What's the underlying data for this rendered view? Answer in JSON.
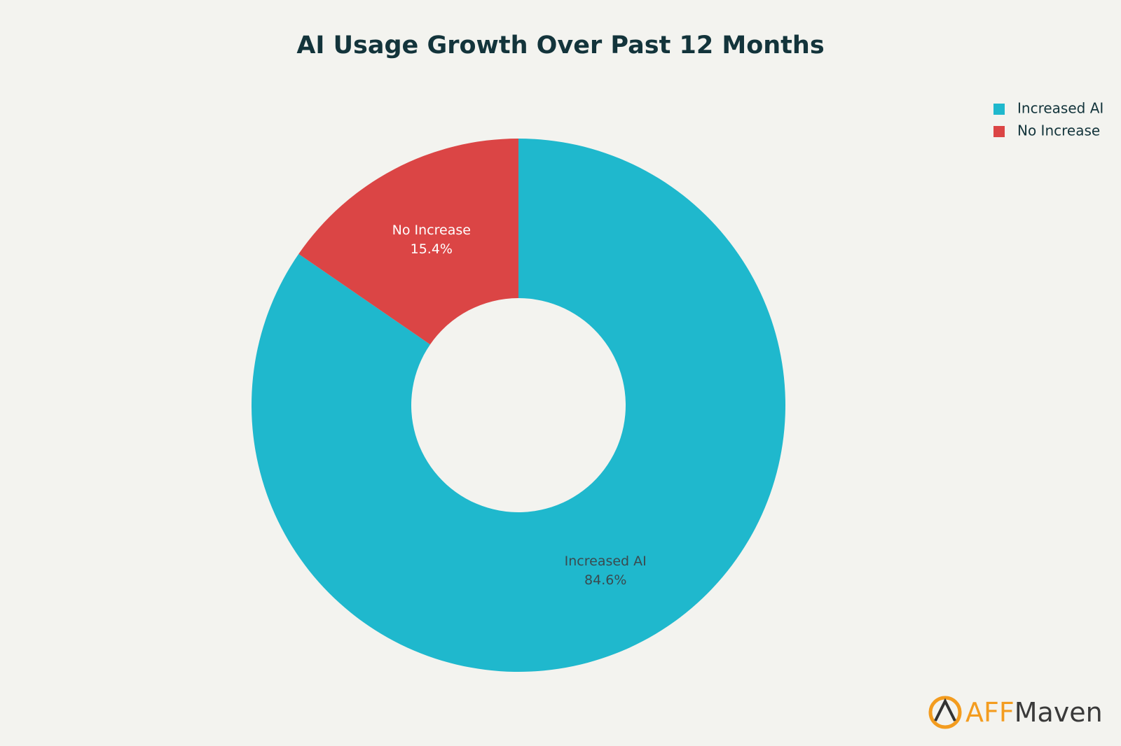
{
  "chart_data": {
    "type": "donut",
    "title": "AI Usage Growth Over Past 12 Months",
    "categories": [
      "Increased AI",
      "No Increase"
    ],
    "values": [
      84.6,
      15.4
    ],
    "value_labels": [
      "84.6%",
      "15.4%"
    ],
    "colors": [
      "#1fb8cd",
      "#db4545"
    ],
    "legend": "top-right"
  },
  "watermark": {
    "accent": "AFF",
    "text": "Maven"
  }
}
